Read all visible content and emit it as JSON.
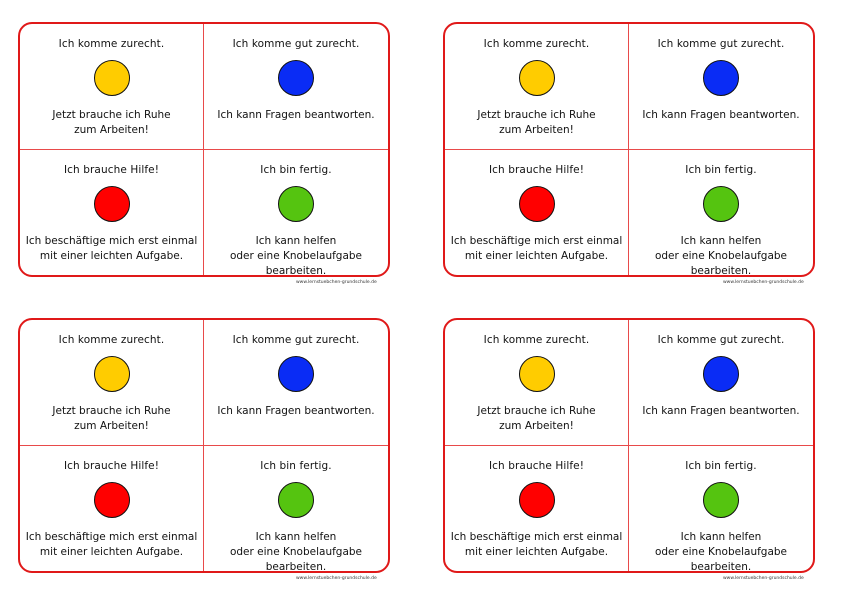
{
  "colors": {
    "border": "#e01919",
    "yellow": "#ffcc00",
    "blue": "#0a2cf5",
    "red": "#ff0000",
    "green": "#55c410"
  },
  "cards": [
    {
      "cells": [
        {
          "title": "Ich komme zurecht.",
          "icon": "yellow-circle-icon",
          "lines": [
            "Jetzt brauche ich Ruhe",
            "zum Arbeiten!"
          ]
        },
        {
          "title": "Ich komme gut zurecht.",
          "icon": "blue-circle-icon",
          "lines": [
            "Ich kann Fragen beantworten."
          ]
        },
        {
          "title": "Ich brauche Hilfe!",
          "icon": "red-circle-icon",
          "lines": [
            "Ich beschäftige mich erst einmal",
            "mit einer leichten Aufgabe."
          ]
        },
        {
          "title": "Ich bin fertig.",
          "icon": "green-circle-icon",
          "lines": [
            "Ich kann helfen",
            "oder eine Knobelaufgabe bearbeiten."
          ]
        }
      ],
      "footer": "www.lernstuebchen-grundschule.de"
    },
    {
      "cells": [
        {
          "title": "Ich komme zurecht.",
          "icon": "yellow-circle-icon",
          "lines": [
            "Jetzt brauche ich Ruhe",
            "zum Arbeiten!"
          ]
        },
        {
          "title": "Ich komme gut zurecht.",
          "icon": "blue-circle-icon",
          "lines": [
            "Ich kann Fragen beantworten."
          ]
        },
        {
          "title": "Ich brauche Hilfe!",
          "icon": "red-circle-icon",
          "lines": [
            "Ich beschäftige mich erst einmal",
            "mit einer leichten Aufgabe."
          ]
        },
        {
          "title": "Ich bin fertig.",
          "icon": "green-circle-icon",
          "lines": [
            "Ich kann helfen",
            "oder eine Knobelaufgabe bearbeiten."
          ]
        }
      ],
      "footer": "www.lernstuebchen-grundschule.de"
    },
    {
      "cells": [
        {
          "title": "Ich komme zurecht.",
          "icon": "yellow-circle-icon",
          "lines": [
            "Jetzt brauche ich Ruhe",
            "zum Arbeiten!"
          ]
        },
        {
          "title": "Ich komme gut zurecht.",
          "icon": "blue-circle-icon",
          "lines": [
            "Ich kann Fragen beantworten."
          ]
        },
        {
          "title": "Ich brauche Hilfe!",
          "icon": "red-circle-icon",
          "lines": [
            "Ich beschäftige mich erst einmal",
            "mit einer leichten Aufgabe."
          ]
        },
        {
          "title": "Ich bin fertig.",
          "icon": "green-circle-icon",
          "lines": [
            "Ich kann helfen",
            "oder eine Knobelaufgabe bearbeiten."
          ]
        }
      ],
      "footer": "www.lernstuebchen-grundschule.de"
    },
    {
      "cells": [
        {
          "title": "Ich komme zurecht.",
          "icon": "yellow-circle-icon",
          "lines": [
            "Jetzt brauche ich Ruhe",
            "zum Arbeiten!"
          ]
        },
        {
          "title": "Ich komme gut zurecht.",
          "icon": "blue-circle-icon",
          "lines": [
            "Ich kann Fragen beantworten."
          ]
        },
        {
          "title": "Ich brauche Hilfe!",
          "icon": "red-circle-icon",
          "lines": [
            "Ich beschäftige mich erst einmal",
            "mit einer leichten Aufgabe."
          ]
        },
        {
          "title": "Ich bin fertig.",
          "icon": "green-circle-icon",
          "lines": [
            "Ich kann helfen",
            "oder eine Knobelaufgabe bearbeiten."
          ]
        }
      ],
      "footer": "www.lernstuebchen-grundschule.de"
    }
  ]
}
